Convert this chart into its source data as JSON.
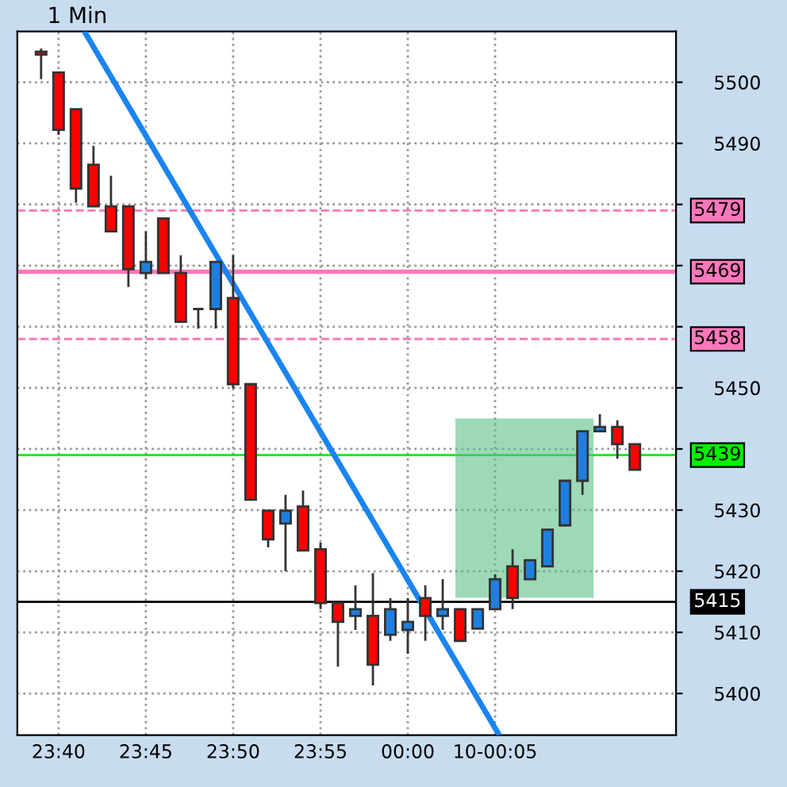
{
  "chart_data": {
    "type": "candlestick",
    "title": "1 Min",
    "x": [
      23.65,
      23.6667,
      23.6833,
      23.7,
      23.7167,
      23.7333,
      23.75,
      23.7667,
      23.7833,
      23.8,
      23.8167,
      23.8333,
      23.85,
      23.8667,
      23.8833,
      23.9,
      23.9167,
      23.9333,
      23.95,
      23.9667,
      23.9833,
      24.0,
      24.0167,
      24.0333,
      24.05,
      24.0667,
      24.0833,
      24.1,
      24.1167,
      24.1333,
      24.15,
      24.1667,
      24.1833,
      24.2,
      24.2167
    ],
    "ohlc": [
      [
        5505,
        5505.5,
        5500.5,
        5504.5
      ],
      [
        5501.6,
        5501.6,
        5491.4,
        5492.2
      ],
      [
        5495.6,
        5495.6,
        5480.3,
        5482.6
      ],
      [
        5486.5,
        5489.6,
        5479.7,
        5479.7
      ],
      [
        5479.7,
        5484.7,
        5475.6,
        5475.6
      ],
      [
        5479.7,
        5479.7,
        5466.5,
        5469.4
      ],
      [
        5468.8,
        5475.6,
        5467.8,
        5470.6
      ],
      [
        5477.7,
        5477.7,
        5468.8,
        5468.8
      ],
      [
        5468.8,
        5471.7,
        5460.8,
        5460.8
      ],
      [
        5462.9,
        5462.9,
        5459.7,
        5462.9
      ],
      [
        5462.9,
        5470.6,
        5459.7,
        5470.6
      ],
      [
        5464.7,
        5471.7,
        5449.9,
        5450.6
      ],
      [
        5450.6,
        5450.6,
        5431.7,
        5431.7
      ],
      [
        5429.9,
        5429.9,
        5423.9,
        5425.2
      ],
      [
        5427.8,
        5432.5,
        5420.0,
        5429.9
      ],
      [
        5430.6,
        5433.2,
        5423.4,
        5423.4
      ],
      [
        5423.6,
        5424.7,
        5413.8,
        5414.8
      ],
      [
        5414.8,
        5414.8,
        5404.4,
        5411.7
      ],
      [
        5412.7,
        5417.7,
        5410.4,
        5413.8
      ],
      [
        5412.7,
        5419.7,
        5401.3,
        5404.7
      ],
      [
        5409.6,
        5415.6,
        5408.6,
        5413.8
      ],
      [
        5410.4,
        5415.6,
        5406.5,
        5411.7
      ],
      [
        5415.6,
        5417.7,
        5408.6,
        5412.7
      ],
      [
        5412.7,
        5418.7,
        5410.4,
        5413.8
      ],
      [
        5413.8,
        5413.8,
        5408.6,
        5408.6
      ],
      [
        5410.6,
        5413.8,
        5410.6,
        5413.8
      ],
      [
        5413.8,
        5419.5,
        5413.8,
        5418.7
      ],
      [
        5420.8,
        5423.6,
        5413.8,
        5415.6
      ],
      [
        5418.7,
        5421.8,
        5418.7,
        5421.8
      ],
      [
        5420.8,
        5426.8,
        5420.8,
        5426.8
      ],
      [
        5427.5,
        5434.8,
        5427.5,
        5434.8
      ],
      [
        5434.8,
        5442.9,
        5432.5,
        5442.9
      ],
      [
        5442.9,
        5445.7,
        5442.9,
        5443.6
      ],
      [
        5443.6,
        5444.7,
        5438.4,
        5440.8
      ],
      [
        5440.8,
        5440.8,
        5436.6,
        5436.6
      ]
    ],
    "colors": [
      "#ff0000",
      "#ff0000",
      "#ff0000",
      "#ff0000",
      "#ff0000",
      "#ff0000",
      "#1e7fe0",
      "#ff0000",
      "#ff0000",
      "#333333",
      "#1e7fe0",
      "#ff0000",
      "#ff0000",
      "#ff0000",
      "#1e7fe0",
      "#ff0000",
      "#ff0000",
      "#ff0000",
      "#1e7fe0",
      "#ff0000",
      "#1e7fe0",
      "#1e7fe0",
      "#ff0000",
      "#1e7fe0",
      "#ff0000",
      "#1e7fe0",
      "#1e7fe0",
      "#ff0000",
      "#1e7fe0",
      "#1e7fe0",
      "#1e7fe0",
      "#1e7fe0",
      "#1e7fe0",
      "#ff0000",
      "#ff0000"
    ],
    "series": [
      {
        "type": "line",
        "color": "#1a84f0",
        "x": [
          23.6924,
          24.0862
        ],
        "values": [
          5508,
          5393.5
        ]
      }
    ],
    "xlim": [
      23.6273,
      24.256
    ],
    "ylim": [
      5393.2,
      5508.3
    ],
    "xticks": [
      {
        "value": 23.6667,
        "label": "23:40"
      },
      {
        "value": 23.75,
        "label": "23:45"
      },
      {
        "value": 23.8333,
        "label": "23:50"
      },
      {
        "value": 23.9167,
        "label": "23:55"
      },
      {
        "value": 24.0,
        "label": "00:00"
      },
      {
        "value": 24.0833,
        "label": "10-00:05"
      }
    ],
    "yticks": [
      5400,
      5410,
      5420,
      5430,
      {
        "value": 5440,
        "label": null
      },
      5450,
      {
        "value": 5460,
        "label": null
      },
      {
        "value": 5470,
        "label": null
      },
      {
        "value": 5480,
        "label": null
      },
      5490,
      5500
    ],
    "ref_lines": [
      {
        "axis": "y",
        "value": 5479,
        "label": "5479",
        "color": "#ff77bb",
        "line_style": "dashed"
      },
      {
        "axis": "y",
        "value": 5469,
        "label": "5469",
        "color": "#ff77bb",
        "line_style": "solid"
      },
      {
        "axis": "y",
        "value": 5458,
        "label": "5458",
        "color": "#ff77bb",
        "line_style": "dashed"
      },
      {
        "axis": "y",
        "value": 5439,
        "label": "5439",
        "color": "#00ee00",
        "line_style": "solid"
      },
      {
        "axis": "y",
        "value": 5415,
        "label": "5415",
        "color": "#000000",
        "line_style": "solid"
      }
    ],
    "grid": true
  }
}
